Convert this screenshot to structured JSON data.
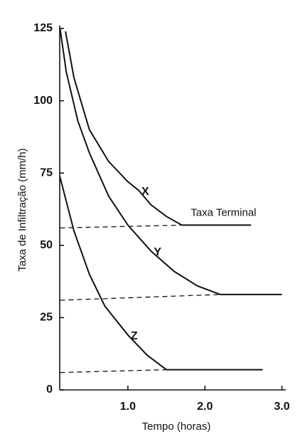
{
  "chart_data": {
    "type": "line",
    "x_label": "Tempo (horas)",
    "y_label": "Taxa de Infiltração (mm/h)",
    "annotation": "Taxa Terminal",
    "xlim": [
      0.115,
      3.05
    ],
    "ylim": [
      0,
      125
    ],
    "xticks": [
      {
        "value": 1,
        "label": "1.0"
      },
      {
        "value": 2,
        "label": "2.0"
      },
      {
        "value": 3,
        "label": "3.0"
      }
    ],
    "yticks": [
      0,
      25,
      50,
      75,
      100,
      125
    ],
    "series": [
      {
        "name": "X",
        "color": "#111111",
        "x": [
          0.19,
          0.3,
          0.5,
          0.75,
          1.0,
          1.14,
          1.3,
          1.5,
          1.7,
          2.0,
          2.6
        ],
        "values": [
          124,
          108,
          90,
          79,
          72,
          69,
          64,
          60,
          57,
          57,
          57
        ]
      },
      {
        "name": "Y",
        "color": "#111111",
        "x": [
          0.12,
          0.2,
          0.35,
          0.5,
          0.75,
          1.0,
          1.3,
          1.6,
          1.9,
          2.2,
          3.0
        ],
        "values": [
          125,
          110,
          93,
          82,
          67,
          57,
          48,
          41,
          36,
          33,
          33
        ]
      },
      {
        "name": "Z",
        "color": "#111111",
        "x": [
          0.115,
          0.3,
          0.5,
          0.7,
          1.0,
          1.25,
          1.5,
          2.75
        ],
        "values": [
          74,
          55,
          40,
          29,
          19,
          12,
          7,
          7
        ]
      }
    ],
    "terminal_lines": [
      {
        "x": [
          0.12,
          1.7
        ],
        "values": [
          56,
          57
        ]
      },
      {
        "x": [
          0.12,
          2.2
        ],
        "values": [
          31,
          33
        ]
      },
      {
        "x": [
          0.12,
          1.5
        ],
        "values": [
          6,
          7
        ]
      }
    ]
  }
}
